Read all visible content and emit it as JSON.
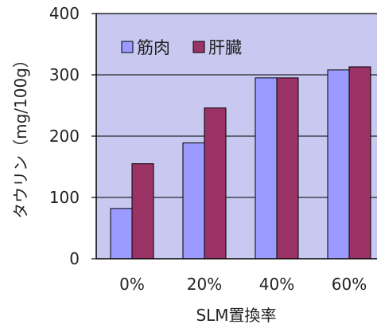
{
  "chart_data": {
    "type": "bar",
    "categories": [
      "0%",
      "20%",
      "40%",
      "60%"
    ],
    "series": [
      {
        "name": "筋肉",
        "values": [
          82,
          189,
          295,
          308
        ]
      },
      {
        "name": "肝臓",
        "values": [
          155,
          246,
          295,
          313
        ]
      }
    ],
    "xlabel": "SLM置換率",
    "ylabel": "タウリン（mg/100g）",
    "ylim": [
      0,
      400
    ],
    "yticks": [
      "0",
      "100",
      "200",
      "300",
      "400"
    ],
    "grid": "horizontal",
    "legend": "top-left",
    "colors": {
      "plot_bg": "#c8c8f0",
      "series1": "#9b9bff",
      "series2": "#9b3366",
      "axis": "#000000",
      "grid": "#000000"
    }
  }
}
